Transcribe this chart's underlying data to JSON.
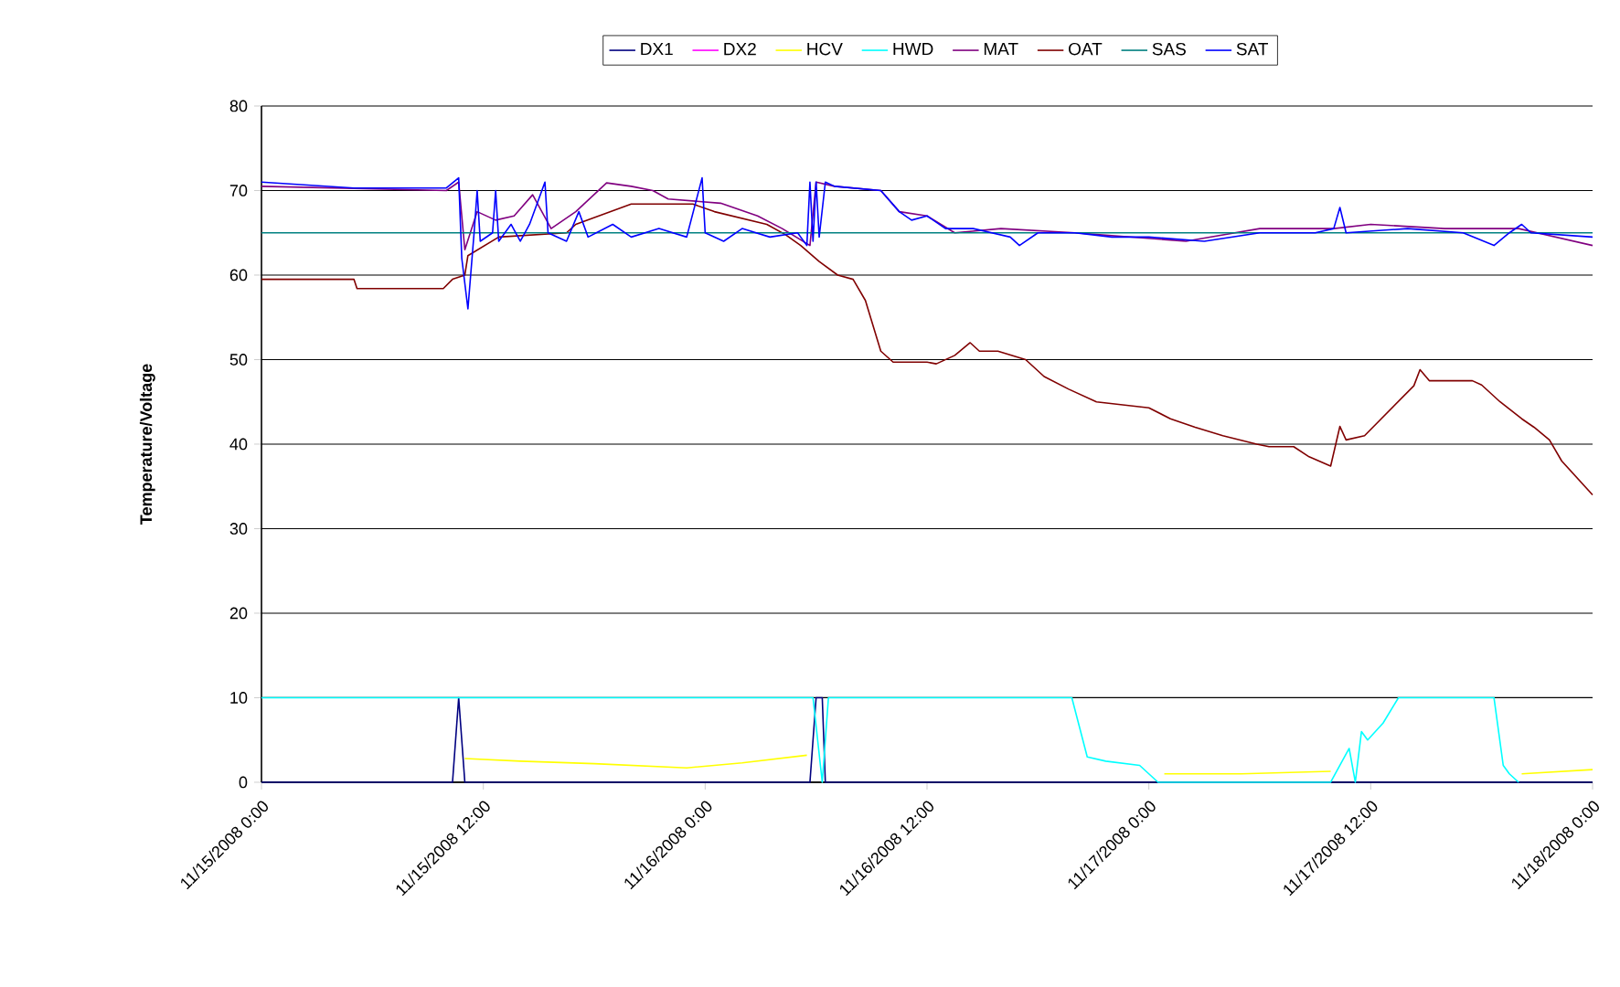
{
  "chart_data": {
    "type": "line",
    "ylabel": "Temperature/Voltage",
    "grid": "y",
    "legend": "top",
    "xlim": [
      "2008-11-15T00:00",
      "2008-11-18T00:00"
    ],
    "ylim": [
      0,
      80
    ],
    "yticks": [
      0,
      10,
      20,
      30,
      40,
      50,
      60,
      70,
      80
    ],
    "xticks": [
      {
        "value": "2008-11-15T00:00",
        "label": "11/15/2008 0:00"
      },
      {
        "value": "2008-11-15T12:00",
        "label": "11/15/2008 12:00"
      },
      {
        "value": "2008-11-16T00:00",
        "label": "11/16/2008 0:00"
      },
      {
        "value": "2008-11-16T12:00",
        "label": "11/16/2008 12:00"
      },
      {
        "value": "2008-11-17T00:00",
        "label": "11/17/2008 0:00"
      },
      {
        "value": "2008-11-17T12:00",
        "label": "11/17/2008 12:00"
      },
      {
        "value": "2008-11-18T00:00",
        "label": "11/18/2008 0:00"
      }
    ],
    "series": [
      {
        "name": "DX1",
        "color": "#000080",
        "x": [
          "2008-11-15T00:00",
          "2008-11-15T10:20",
          "2008-11-15T10:40",
          "2008-11-15T11:00",
          "2008-11-16T05:40",
          "2008-11-16T06:00",
          "2008-11-16T06:20",
          "2008-11-16T06:30",
          "2008-11-18T00:00"
        ],
        "values": [
          0,
          0,
          10,
          0,
          0,
          10,
          10,
          0,
          0
        ]
      },
      {
        "name": "DX2",
        "color": "#ff00ff",
        "type": "line"
      },
      {
        "name": "HCV",
        "color": "#ffff00",
        "x": [
          "2008-11-15T11:00",
          "2008-11-15T14:00",
          "2008-11-15T18:00",
          "2008-11-15T23:00",
          "2008-11-16T02:00",
          "2008-11-16T05:30",
          "2008-11-16T05:40",
          "2008-11-17T00:40",
          "2008-11-17T00:50",
          "2008-11-17T05:00",
          "2008-11-17T09:50",
          "2008-11-17T10:00",
          "2008-11-17T20:00",
          "2008-11-17T20:10",
          "2008-11-18T00:00"
        ],
        "values": [
          2.8,
          2.5,
          2.2,
          1.7,
          2.3,
          3.2,
          null,
          null,
          1,
          1,
          1.3,
          null,
          null,
          1,
          1.5
        ]
      },
      {
        "name": "HWD",
        "color": "#00ffff",
        "x": [
          "2008-11-15T00:00",
          "2008-11-16T05:50",
          "2008-11-16T06:20",
          "2008-11-16T06:40",
          "2008-11-16T19:50",
          "2008-11-16T20:40",
          "2008-11-16T21:40",
          "2008-11-16T23:30",
          "2008-11-17T00:30",
          "2008-11-17T09:50",
          "2008-11-17T10:50",
          "2008-11-17T11:10",
          "2008-11-17T11:30",
          "2008-11-17T11:50",
          "2008-11-17T12:40",
          "2008-11-17T13:30",
          "2008-11-17T18:40",
          "2008-11-17T19:10",
          "2008-11-17T19:30",
          "2008-11-17T20:00"
        ],
        "values": [
          10,
          10,
          0,
          10,
          10,
          3,
          2.5,
          2,
          0,
          0,
          4,
          0,
          6,
          5,
          7,
          10,
          10,
          2,
          1,
          0
        ]
      },
      {
        "name": "MAT",
        "color": "#800080",
        "x": [
          "2008-11-15T00:00",
          "2008-11-15T10:00",
          "2008-11-15T10:40",
          "2008-11-15T11:00",
          "2008-11-15T11:40",
          "2008-11-15T12:40",
          "2008-11-15T13:40",
          "2008-11-15T14:40",
          "2008-11-15T15:40",
          "2008-11-15T17:00",
          "2008-11-15T18:40",
          "2008-11-15T20:00",
          "2008-11-15T21:10",
          "2008-11-15T22:00",
          "2008-11-16T00:50",
          "2008-11-16T02:50",
          "2008-11-16T04:10",
          "2008-11-16T05:40",
          "2008-11-16T06:00",
          "2008-11-16T07:00",
          "2008-11-16T09:30",
          "2008-11-16T10:30",
          "2008-11-16T12:00",
          "2008-11-16T13:30",
          "2008-11-16T16:00",
          "2008-11-16T20:00",
          "2008-11-17T02:00",
          "2008-11-17T06:00",
          "2008-11-17T10:00",
          "2008-11-17T12:00",
          "2008-11-17T16:00",
          "2008-11-17T20:00",
          "2008-11-18T00:00"
        ],
        "values": [
          70.5,
          70,
          71,
          63,
          67.5,
          66.5,
          67,
          69.5,
          65.5,
          67.5,
          70.9,
          70.5,
          70,
          69,
          68.5,
          67,
          65.5,
          63.5,
          71,
          70.5,
          70,
          67.5,
          67,
          65,
          65.5,
          65,
          64,
          65.5,
          65.5,
          66,
          65.5,
          65.5,
          63.5
        ]
      },
      {
        "name": "OAT",
        "color": "#800000",
        "x": [
          "2008-11-15T00:00",
          "2008-11-15T05:00",
          "2008-11-15T05:10",
          "2008-11-15T09:50",
          "2008-11-15T10:20",
          "2008-11-15T11:00",
          "2008-11-15T11:10",
          "2008-11-15T12:50",
          "2008-11-15T16:30",
          "2008-11-15T17:00",
          "2008-11-15T20:00",
          "2008-11-15T23:20",
          "2008-11-16T00:30",
          "2008-11-16T03:20",
          "2008-11-16T04:20",
          "2008-11-16T05:10",
          "2008-11-16T06:10",
          "2008-11-16T07:10",
          "2008-11-16T08:00",
          "2008-11-16T08:40",
          "2008-11-16T09:30",
          "2008-11-16T10:10",
          "2008-11-16T12:00",
          "2008-11-16T12:30",
          "2008-11-16T13:30",
          "2008-11-16T14:20",
          "2008-11-16T14:50",
          "2008-11-16T15:50",
          "2008-11-16T17:20",
          "2008-11-16T18:20",
          "2008-11-16T19:40",
          "2008-11-16T21:10",
          "2008-11-17T00:00",
          "2008-11-17T01:10",
          "2008-11-17T02:30",
          "2008-11-17T04:00",
          "2008-11-17T05:50",
          "2008-11-17T06:30",
          "2008-11-17T07:50",
          "2008-11-17T08:40",
          "2008-11-17T09:50",
          "2008-11-17T10:20",
          "2008-11-17T10:40",
          "2008-11-17T11:40",
          "2008-11-17T14:20",
          "2008-11-17T14:40",
          "2008-11-17T15:10",
          "2008-11-17T17:30",
          "2008-11-17T18:00",
          "2008-11-17T19:00",
          "2008-11-17T20:10",
          "2008-11-17T20:50",
          "2008-11-17T21:40",
          "2008-11-17T22:20",
          "2008-11-17T23:10",
          "2008-11-18T00:00"
        ],
        "values": [
          59.5,
          59.5,
          58.4,
          58.4,
          59.5,
          60,
          62.3,
          64.5,
          65,
          66,
          68.4,
          68.4,
          67.5,
          66,
          64.8,
          63.5,
          61.6,
          60,
          59.5,
          57,
          51,
          49.7,
          49.7,
          49.5,
          50.5,
          52,
          51,
          51,
          50,
          48,
          46.5,
          45,
          44.3,
          43,
          42,
          41,
          40,
          39.7,
          39.7,
          38.5,
          37.4,
          42.1,
          40.5,
          41,
          46.9,
          48.8,
          47.5,
          47.5,
          47,
          45,
          43,
          42,
          40.5,
          38,
          36,
          34
        ]
      },
      {
        "name": "SAS",
        "color": "#008080",
        "x": [
          "2008-11-15T00:00",
          "2008-11-18T00:00"
        ],
        "values": [
          65,
          65
        ]
      },
      {
        "name": "SAT",
        "color": "#0000ff",
        "x": [
          "2008-11-15T00:00",
          "2008-11-15T05:00",
          "2008-11-15T10:00",
          "2008-11-15T10:40",
          "2008-11-15T10:50",
          "2008-11-15T11:10",
          "2008-11-15T11:30",
          "2008-11-15T11:40",
          "2008-11-15T11:50",
          "2008-11-15T12:30",
          "2008-11-15T12:40",
          "2008-11-15T12:50",
          "2008-11-15T13:30",
          "2008-11-15T14:00",
          "2008-11-15T14:30",
          "2008-11-15T15:20",
          "2008-11-15T15:30",
          "2008-11-15T16:30",
          "2008-11-15T17:10",
          "2008-11-15T17:40",
          "2008-11-15T19:00",
          "2008-11-15T20:00",
          "2008-11-15T21:30",
          "2008-11-15T23:00",
          "2008-11-15T23:50",
          "2008-11-16T00:00",
          "2008-11-16T01:00",
          "2008-11-16T02:00",
          "2008-11-16T03:30",
          "2008-11-16T05:00",
          "2008-11-16T05:30",
          "2008-11-16T05:40",
          "2008-11-16T05:50",
          "2008-11-16T06:00",
          "2008-11-16T06:10",
          "2008-11-16T06:30",
          "2008-11-16T07:00",
          "2008-11-16T09:30",
          "2008-11-16T10:30",
          "2008-11-16T11:10",
          "2008-11-16T12:00",
          "2008-11-16T13:00",
          "2008-11-16T14:30",
          "2008-11-16T16:30",
          "2008-11-16T17:00",
          "2008-11-16T18:00",
          "2008-11-16T20:00",
          "2008-11-16T22:00",
          "2008-11-17T00:00",
          "2008-11-17T03:00",
          "2008-11-17T06:00",
          "2008-11-17T09:00",
          "2008-11-17T10:00",
          "2008-11-17T10:20",
          "2008-11-17T10:40",
          "2008-11-17T14:00",
          "2008-11-17T17:00",
          "2008-11-17T18:40",
          "2008-11-17T19:30",
          "2008-11-17T20:10",
          "2008-11-17T20:40",
          "2008-11-18T00:00"
        ],
        "values": [
          71,
          70.3,
          70.3,
          71.5,
          62,
          56,
          65,
          70,
          64,
          65,
          70,
          64,
          66,
          64,
          66,
          71,
          65,
          64,
          67.5,
          64.5,
          66,
          64.5,
          65.5,
          64.5,
          71.5,
          65,
          64,
          65.5,
          64.5,
          65,
          63.5,
          71,
          64,
          71,
          64.5,
          71,
          70.5,
          70,
          67.5,
          66.5,
          67,
          65.5,
          65.5,
          64.5,
          63.5,
          65,
          65,
          64.5,
          64.5,
          64,
          65,
          65,
          65.5,
          68,
          65,
          65.5,
          65,
          63.5,
          65,
          66,
          65,
          64.5
        ]
      }
    ]
  }
}
